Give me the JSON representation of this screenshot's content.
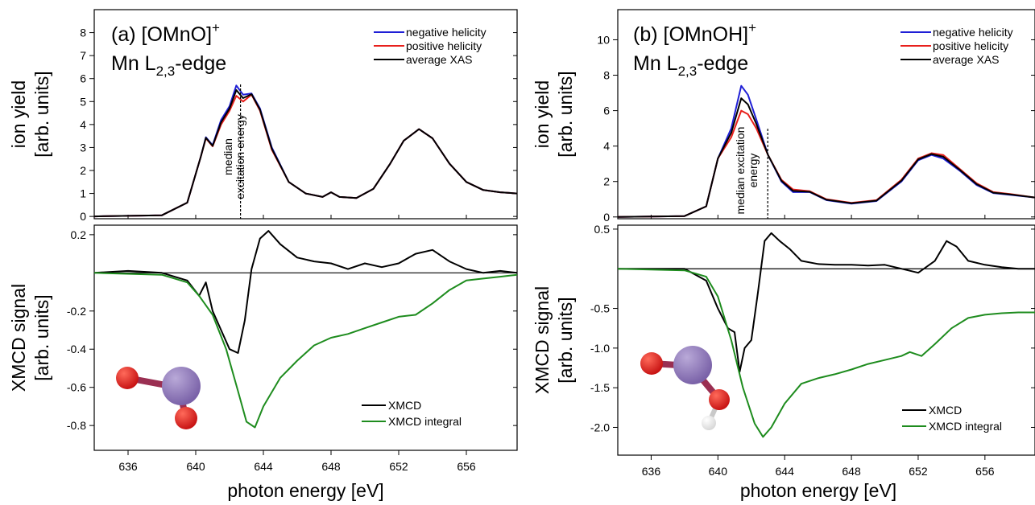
{
  "colors": {
    "negative_helicity": "#1f1fd6",
    "positive_helicity": "#e8201c",
    "average_xas": "#000000",
    "xmcd": "#000000",
    "xmcd_integral": "#1e8c1e",
    "mn_atom": "#7a62a8",
    "o_atom": "#c81414",
    "h_atom": "#d8d8d8",
    "bond": "#9a2f52"
  },
  "icons": {
    "panel_a": "omno-molecule-icon",
    "panel_b": "omnoh-molecule-icon"
  },
  "chart_data": [
    {
      "type": "line",
      "panel": "a",
      "title_line1": "(a) [OMnO]",
      "title_sup": "+",
      "title_line2_main": "Mn L",
      "title_line2_sub": "2,3",
      "title_line2_tail": "-edge",
      "xlabel": "photon energy [eV]",
      "xlim": [
        634,
        659
      ],
      "xticks": [
        636,
        640,
        644,
        648,
        652,
        656
      ],
      "xtick_labels": [
        "636",
        "640",
        "644",
        "648",
        "652",
        "656"
      ],
      "upper": {
        "ylabel_line1": "ion yield",
        "ylabel_line2": "[arb. units]",
        "ylim": [
          -0.1,
          9
        ],
        "yticks": [
          0,
          1,
          2,
          3,
          4,
          5,
          6,
          7,
          8
        ],
        "ytick_labels": [
          "0",
          "1",
          "2",
          "3",
          "4",
          "5",
          "6",
          "7",
          "8"
        ],
        "legend_position": "top-right",
        "series": [
          {
            "name": "negative helicity",
            "color_key": "negative_helicity",
            "x": [
              634,
              638,
              639.5,
              640.3,
              640.6,
              641.0,
              641.5,
              642.0,
              642.4,
              642.8,
              643.3,
              643.8,
              644.5,
              645.5,
              646.5,
              647.5,
              648.0,
              648.5,
              649.5,
              650.5,
              651.5,
              652.3,
              653.2,
              654.0,
              655.0,
              656.0,
              657.0,
              658.0,
              659.0
            ],
            "y": [
              0.0,
              0.05,
              0.6,
              2.6,
              3.45,
              3.1,
              4.2,
              4.8,
              5.7,
              5.3,
              5.35,
              4.7,
              3.0,
              1.5,
              1.0,
              0.85,
              1.05,
              0.85,
              0.8,
              1.2,
              2.3,
              3.3,
              3.8,
              3.4,
              2.3,
              1.5,
              1.15,
              1.05,
              1.0
            ]
          },
          {
            "name": "positive helicity",
            "color_key": "positive_helicity",
            "x": [
              634,
              638,
              639.5,
              640.3,
              640.6,
              641.0,
              641.5,
              642.0,
              642.4,
              642.8,
              643.3,
              643.8,
              644.5,
              645.5,
              646.5,
              647.5,
              648.0,
              648.5,
              649.5,
              650.5,
              651.5,
              652.3,
              653.2,
              654.0,
              655.0,
              656.0,
              657.0,
              658.0,
              659.0
            ],
            "y": [
              0.0,
              0.05,
              0.6,
              2.6,
              3.4,
              3.05,
              4.0,
              4.6,
              5.25,
              5.0,
              5.3,
              4.6,
              2.9,
              1.5,
              1.0,
              0.85,
              1.05,
              0.85,
              0.8,
              1.2,
              2.3,
              3.3,
              3.8,
              3.4,
              2.3,
              1.5,
              1.15,
              1.05,
              1.0
            ]
          },
          {
            "name": "average XAS",
            "color_key": "average_xas",
            "x": [
              634,
              638,
              639.5,
              640.3,
              640.6,
              641.0,
              641.5,
              642.0,
              642.4,
              642.8,
              643.3,
              643.8,
              644.5,
              645.5,
              646.5,
              647.5,
              648.0,
              648.5,
              649.5,
              650.5,
              651.5,
              652.3,
              653.2,
              654.0,
              655.0,
              656.0,
              657.0,
              658.0,
              659.0
            ],
            "y": [
              0.0,
              0.05,
              0.6,
              2.6,
              3.42,
              3.07,
              4.1,
              4.7,
              5.5,
              5.15,
              5.32,
              4.65,
              2.95,
              1.5,
              1.0,
              0.85,
              1.05,
              0.85,
              0.8,
              1.2,
              2.3,
              3.3,
              3.8,
              3.4,
              2.3,
              1.5,
              1.15,
              1.05,
              1.0
            ]
          }
        ],
        "annotation": {
          "line1": "median",
          "line2": "excitation energy",
          "x": 642.6
        }
      },
      "lower": {
        "ylabel_line1": "XMCD signal",
        "ylabel_line2": "[arb. units]",
        "ylim": [
          -0.93,
          0.25
        ],
        "yticks": [
          0.2,
          -0.2,
          -0.4,
          -0.6,
          -0.8
        ],
        "ytick_labels": [
          "0.2",
          "-0.2",
          "-0.4",
          "-0.6",
          "-0.8"
        ],
        "zero_line": 0,
        "legend_position": "bottom-right",
        "series": [
          {
            "name": "XMCD",
            "color_key": "xmcd",
            "x": [
              634,
              636,
              638,
              639.5,
              640.2,
              640.6,
              641.0,
              641.5,
              642.0,
              642.5,
              642.9,
              643.3,
              643.8,
              644.3,
              645.0,
              646.0,
              647.0,
              648.0,
              649.0,
              650.0,
              651.0,
              652.0,
              653.0,
              654.0,
              655.0,
              656.0,
              657.0,
              658.0,
              659.0
            ],
            "y": [
              0.0,
              0.01,
              0.0,
              -0.04,
              -0.12,
              -0.05,
              -0.2,
              -0.3,
              -0.4,
              -0.42,
              -0.25,
              0.02,
              0.18,
              0.22,
              0.15,
              0.08,
              0.06,
              0.05,
              0.02,
              0.05,
              0.03,
              0.05,
              0.1,
              0.12,
              0.06,
              0.02,
              0.0,
              0.01,
              0.0
            ]
          },
          {
            "name": "XMCD integral",
            "color_key": "xmcd_integral",
            "x": [
              634,
              638,
              639.5,
              640.2,
              641.0,
              641.8,
              642.5,
              643.0,
              643.5,
              644.0,
              645.0,
              646.0,
              647.0,
              648.0,
              649.0,
              650.0,
              651.0,
              652.0,
              653.0,
              654.0,
              655.0,
              656.0,
              657.0,
              658.0,
              659.0
            ],
            "y": [
              0.0,
              -0.01,
              -0.05,
              -0.12,
              -0.22,
              -0.4,
              -0.62,
              -0.78,
              -0.81,
              -0.7,
              -0.55,
              -0.46,
              -0.38,
              -0.34,
              -0.32,
              -0.29,
              -0.26,
              -0.23,
              -0.22,
              -0.16,
              -0.09,
              -0.04,
              -0.03,
              -0.02,
              -0.01
            ]
          }
        ]
      }
    },
    {
      "type": "line",
      "panel": "b",
      "title_line1": "(b) [OMnOH]",
      "title_sup": "+",
      "title_line2_main": "Mn L",
      "title_line2_sub": "2,3",
      "title_line2_tail": "-edge",
      "xlabel": "photon energy [eV]",
      "xlim": [
        634,
        659
      ],
      "xticks": [
        636,
        640,
        644,
        648,
        652,
        656
      ],
      "xtick_labels": [
        "636",
        "640",
        "644",
        "648",
        "652",
        "656"
      ],
      "upper": {
        "ylabel_line1": "ion yield",
        "ylabel_line2": "[arb. units]",
        "ylim": [
          -0.1,
          11.7
        ],
        "yticks": [
          0,
          2,
          4,
          6,
          8,
          10
        ],
        "ytick_labels": [
          "0",
          "2",
          "4",
          "6",
          "8",
          "10"
        ],
        "legend_position": "top-right",
        "series": [
          {
            "name": "negative helicity",
            "color_key": "negative_helicity",
            "x": [
              634,
              638,
              639.3,
              640.0,
              640.8,
              641.4,
              641.8,
              642.3,
              643.0,
              643.8,
              644.5,
              645.5,
              646.5,
              648.0,
              649.5,
              651.0,
              652.0,
              652.8,
              653.5,
              654.5,
              655.5,
              656.5,
              657.5,
              659.0
            ],
            "y": [
              0.0,
              0.05,
              0.6,
              3.3,
              5.0,
              7.4,
              6.9,
              5.5,
              3.5,
              2.0,
              1.4,
              1.4,
              0.95,
              0.75,
              0.9,
              2.0,
              3.2,
              3.5,
              3.3,
              2.6,
              1.8,
              1.35,
              1.25,
              1.1
            ]
          },
          {
            "name": "positive helicity",
            "color_key": "positive_helicity",
            "x": [
              634,
              638,
              639.3,
              640.0,
              640.8,
              641.4,
              641.8,
              642.3,
              643.0,
              643.8,
              644.5,
              645.5,
              646.5,
              648.0,
              649.5,
              651.0,
              652.0,
              652.8,
              653.5,
              654.5,
              655.5,
              656.5,
              657.5,
              659.0
            ],
            "y": [
              0.0,
              0.05,
              0.6,
              3.3,
              4.5,
              6.0,
              5.8,
              5.0,
              3.5,
              2.1,
              1.55,
              1.45,
              1.0,
              0.8,
              0.95,
              2.1,
              3.3,
              3.6,
              3.5,
              2.7,
              1.9,
              1.4,
              1.3,
              1.1
            ]
          },
          {
            "name": "average XAS",
            "color_key": "average_xas",
            "x": [
              634,
              638,
              639.3,
              640.0,
              640.8,
              641.4,
              641.8,
              642.3,
              643.0,
              643.8,
              644.5,
              645.5,
              646.5,
              648.0,
              649.5,
              651.0,
              652.0,
              652.8,
              653.5,
              654.5,
              655.5,
              656.5,
              657.5,
              659.0
            ],
            "y": [
              0.0,
              0.05,
              0.6,
              3.3,
              4.75,
              6.7,
              6.35,
              5.25,
              3.5,
              2.05,
              1.47,
              1.42,
              0.97,
              0.77,
              0.92,
              2.05,
              3.25,
              3.55,
              3.4,
              2.65,
              1.85,
              1.37,
              1.27,
              1.1
            ]
          }
        ],
        "annotation": {
          "line1": "median excitation",
          "line2": "energy",
          "x": 642.6
        }
      },
      "lower": {
        "ylabel_line1": "XMCD signal",
        "ylabel_line2": "[arb. units]",
        "ylim": [
          -2.35,
          0.55
        ],
        "yticks": [
          0.5,
          -0.5,
          -1.0,
          -1.5,
          -2.0
        ],
        "ytick_labels": [
          "0.5",
          "-0.5",
          "-1.0",
          "-1.5",
          "-2.0"
        ],
        "zero_line": 0,
        "legend_position": "bottom-right",
        "series": [
          {
            "name": "XMCD",
            "color_key": "xmcd",
            "x": [
              634,
              636,
              638,
              639.3,
              640.0,
              640.6,
              641.0,
              641.3,
              641.6,
              642.0,
              642.4,
              642.8,
              643.2,
              643.7,
              644.3,
              645.0,
              646.0,
              647.0,
              648.0,
              649.0,
              650.0,
              651.0,
              652.0,
              653.0,
              653.7,
              654.3,
              655.0,
              656.0,
              657.0,
              658.0,
              659.0
            ],
            "y": [
              0.0,
              0.0,
              0.0,
              -0.15,
              -0.5,
              -0.75,
              -0.8,
              -1.3,
              -1.0,
              -0.9,
              -0.3,
              0.35,
              0.45,
              0.35,
              0.25,
              0.1,
              0.06,
              0.05,
              0.05,
              0.04,
              0.05,
              0.0,
              -0.05,
              0.1,
              0.35,
              0.28,
              0.1,
              0.05,
              0.02,
              0.0,
              0.0
            ]
          },
          {
            "name": "XMCD integral",
            "color_key": "xmcd_integral",
            "x": [
              634,
              638,
              639.3,
              640.0,
              640.8,
              641.5,
              642.2,
              642.7,
              643.2,
              644.0,
              645.0,
              646.0,
              647.0,
              648.0,
              649.0,
              650.0,
              651.0,
              651.5,
              652.2,
              653.0,
              654.0,
              655.0,
              656.0,
              657.0,
              658.0,
              659.0
            ],
            "y": [
              0.0,
              -0.02,
              -0.1,
              -0.35,
              -0.9,
              -1.5,
              -1.95,
              -2.12,
              -2.0,
              -1.7,
              -1.45,
              -1.38,
              -1.33,
              -1.27,
              -1.2,
              -1.15,
              -1.1,
              -1.05,
              -1.1,
              -0.95,
              -0.75,
              -0.62,
              -0.58,
              -0.56,
              -0.55,
              -0.55
            ]
          }
        ]
      }
    }
  ]
}
